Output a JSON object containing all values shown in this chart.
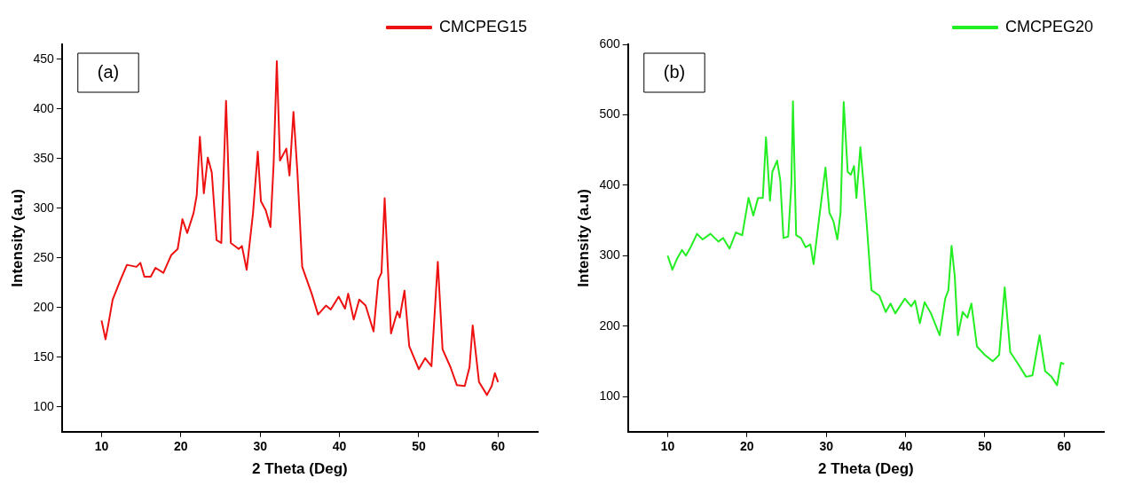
{
  "chart_data": [
    {
      "type": "line",
      "xlabel": "2 Theta (Deg)",
      "ylabel": "Intensity (a.u)",
      "annotations": [
        "(a)"
      ],
      "legend": "top right",
      "grid": false,
      "marker": "none",
      "xlim": [
        5,
        65
      ],
      "xticks": [
        10,
        20,
        30,
        40,
        50,
        60
      ],
      "ylim": [
        75,
        465
      ],
      "yticks": [
        100,
        150,
        200,
        250,
        300,
        350,
        400,
        450
      ],
      "series": [
        {
          "name": "CMCPEG15",
          "color": "#ee1111",
          "x": [
            10,
            10.5,
            10.9,
            11.4,
            12.4,
            13.2,
            14.4,
            14.9,
            15.4,
            16.2,
            16.8,
            17.8,
            18.8,
            19.6,
            20.2,
            20.8,
            21.6,
            22.0,
            22.4,
            22.9,
            23.4,
            23.9,
            24.5,
            25.1,
            25.7,
            26.3,
            27.3,
            27.7,
            28.3,
            29.1,
            29.7,
            30.1,
            30.7,
            31.3,
            31.7,
            32.1,
            32.5,
            33.3,
            33.7,
            34.2,
            34.7,
            35.3,
            36.5,
            37.3,
            38.3,
            38.9,
            39.9,
            40.7,
            41.1,
            41.8,
            42.5,
            43.3,
            44.3,
            44.9,
            45.3,
            45.7,
            46.1,
            46.5,
            47.3,
            47.6,
            48.2,
            48.8,
            50.0,
            50.8,
            51.6,
            52.4,
            53.0,
            54.0,
            54.8,
            55.8,
            56.4,
            56.8,
            57.6,
            58.6,
            59.2,
            59.6,
            60
          ],
          "values": [
            187,
            168,
            185,
            208,
            228,
            243,
            241,
            245,
            231,
            231,
            240,
            235,
            253,
            259,
            289,
            275,
            295,
            313,
            372,
            315,
            351,
            336,
            268,
            265,
            408,
            265,
            259,
            262,
            238,
            295,
            357,
            307,
            298,
            281,
            345,
            448,
            348,
            360,
            333,
            397,
            336,
            241,
            214,
            193,
            202,
            198,
            211,
            199,
            214,
            188,
            208,
            202,
            176,
            228,
            235,
            310,
            241,
            174,
            196,
            190,
            217,
            161,
            138,
            149,
            141,
            246,
            158,
            140,
            122,
            121,
            140,
            182,
            125,
            112,
            121,
            134,
            125
          ]
        }
      ]
    },
    {
      "type": "line",
      "xlabel": "2 Theta (Deg)",
      "ylabel": "Intensity (a.u)",
      "annotations": [
        "(b)"
      ],
      "legend": "top right",
      "grid": false,
      "marker": "none",
      "xlim": [
        5,
        65
      ],
      "xticks": [
        10,
        20,
        30,
        40,
        50,
        60
      ],
      "ylim": [
        50,
        600
      ],
      "yticks": [
        100,
        200,
        300,
        400,
        500,
        600
      ],
      "series": [
        {
          "name": "CMCPEG20",
          "color": "#22ee22",
          "x": [
            10,
            10.6,
            11.2,
            11.8,
            12.3,
            12.9,
            13.7,
            14.4,
            15.4,
            16.4,
            17.0,
            17.8,
            18.6,
            19.4,
            20.2,
            20.8,
            21.4,
            22.0,
            22.4,
            22.9,
            23.2,
            23.8,
            24.2,
            24.6,
            25.2,
            25.6,
            25.8,
            26.2,
            26.8,
            27.4,
            28.0,
            28.4,
            29.1,
            29.9,
            30.4,
            30.9,
            31.4,
            31.8,
            32.2,
            32.7,
            33.1,
            33.5,
            33.8,
            34.3,
            34.7,
            35.1,
            35.7,
            36.7,
            37.5,
            38.1,
            38.7,
            39.9,
            40.7,
            41.2,
            41.8,
            42.4,
            43.2,
            44.3,
            45.0,
            45.4,
            45.8,
            46.2,
            46.6,
            47.2,
            47.8,
            48.3,
            49.0,
            50.0,
            51.0,
            51.8,
            52.5,
            53.2,
            54.2,
            55.2,
            56.0,
            56.9,
            57.6,
            58.4,
            59.1,
            59.6,
            60
          ],
          "values": [
            300,
            280,
            296,
            308,
            300,
            312,
            331,
            323,
            331,
            320,
            325,
            310,
            333,
            329,
            382,
            357,
            382,
            382,
            468,
            378,
            419,
            435,
            407,
            325,
            327,
            402,
            519,
            329,
            325,
            312,
            316,
            288,
            353,
            425,
            361,
            349,
            323,
            361,
            518,
            419,
            415,
            427,
            382,
            454,
            402,
            345,
            251,
            243,
            220,
            232,
            218,
            239,
            228,
            236,
            204,
            234,
            218,
            187,
            239,
            251,
            314,
            271,
            187,
            220,
            212,
            232,
            171,
            159,
            150,
            159,
            255,
            163,
            146,
            128,
            130,
            187,
            136,
            128,
            116,
            148,
            146
          ]
        }
      ]
    }
  ]
}
